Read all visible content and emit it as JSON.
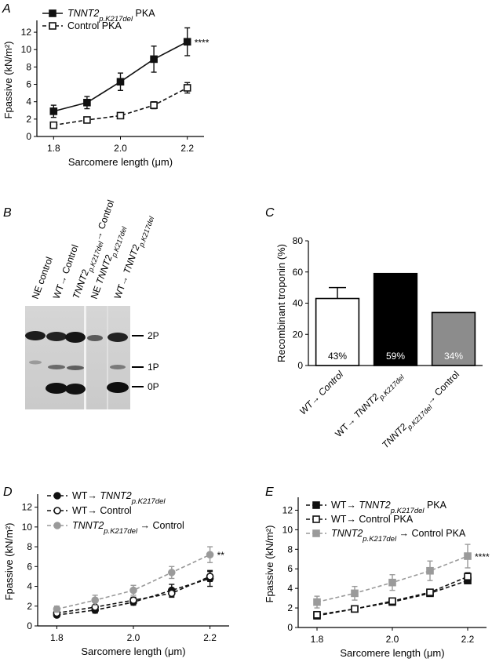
{
  "panels": {
    "a": {
      "letter": "A",
      "chart_data": {
        "type": "line",
        "x": [
          1.8,
          1.9,
          2.0,
          2.1,
          2.2
        ],
        "xlabel": "Sarcomere length (μm)",
        "ylabel": "Fpassive (kN/m²)",
        "xlim": [
          1.75,
          2.25
        ],
        "ylim": [
          0,
          13
        ],
        "xticks": [
          1.8,
          2.0,
          2.2
        ],
        "yticks": [
          0,
          2,
          4,
          6,
          8,
          10,
          12
        ],
        "legend_position": "top-left",
        "series": [
          {
            "name": "TNNT2p.K217del PKA",
            "name_main": "TNNT2",
            "name_sub": "p.K217del",
            "name_suffix": " PKA",
            "values": [
              2.9,
              3.9,
              6.3,
              8.9,
              10.9
            ],
            "errors": [
              0.7,
              0.7,
              1.0,
              1.5,
              1.6
            ],
            "marker": "square",
            "filled": true,
            "color": "#111111",
            "line": "solid",
            "annotation": "****"
          },
          {
            "name": "Control PKA",
            "values": [
              1.3,
              1.9,
              2.4,
              3.6,
              5.6
            ],
            "errors": [
              0.2,
              0.2,
              0.2,
              0.4,
              0.6
            ],
            "marker": "square",
            "filled": false,
            "color": "#111111",
            "line": "dashed"
          }
        ]
      }
    },
    "b": {
      "letter": "B",
      "lanes": [
        {
          "label": "NE control"
        },
        {
          "label": "WT→ Control"
        },
        {
          "main": "TNNT2",
          "sub": "p.K217del",
          "suffix": "→ Control"
        },
        {
          "prefix": "NE ",
          "main": "TNNT2",
          "sub": "p.K217del"
        },
        {
          "prefix": "WT→ ",
          "main": "TNNT2",
          "sub": "p.K217del"
        }
      ],
      "bands": [
        "2P",
        "1P",
        "0P"
      ]
    },
    "c": {
      "letter": "C",
      "chart_data": {
        "type": "bar",
        "ylabel": "Recombinant troponin (%)",
        "ylim": [
          0,
          80
        ],
        "yticks": [
          0,
          20,
          40,
          60,
          80
        ],
        "categories": [
          {
            "main": "WT→ Control"
          },
          {
            "prefix": "WT→ ",
            "main": "TNNT2",
            "sub": "p.K217del"
          },
          {
            "main": "TNNT2",
            "sub": "p.K217del",
            "suffix": "→ Control"
          }
        ],
        "values": [
          43,
          59,
          34
        ],
        "errors": [
          7,
          0,
          0
        ],
        "labels": [
          "43%",
          "59%",
          "34%"
        ],
        "colors": [
          "#ffffff",
          "#000000",
          "#8c8c8c"
        ],
        "label_colors": [
          "#000000",
          "#ffffff",
          "#ffffff"
        ]
      }
    },
    "d": {
      "letter": "D",
      "chart_data": {
        "type": "line",
        "x": [
          1.8,
          1.9,
          2.0,
          2.1,
          2.2
        ],
        "xlabel": "Sarcomere length (μm)",
        "ylabel": "Fpassive (kN/m²)",
        "xlim": [
          1.75,
          2.25
        ],
        "ylim": [
          0,
          13
        ],
        "xticks": [
          1.8,
          2.0,
          2.2
        ],
        "yticks": [
          0,
          2,
          4,
          6,
          8,
          10,
          12
        ],
        "legend_position": "top-left",
        "series": [
          {
            "name": "WT→ TNNT2p.K217del",
            "name_prefix": "WT→ ",
            "name_main": "TNNT2",
            "name_sub": "p.K217del",
            "values": [
              1.1,
              1.6,
              2.4,
              3.6,
              4.8
            ],
            "errors": [
              0.2,
              0.3,
              0.3,
              0.6,
              0.8
            ],
            "marker": "circle",
            "filled": true,
            "color": "#111111",
            "line": "dashed"
          },
          {
            "name": "WT→ Control",
            "values": [
              1.3,
              1.9,
              2.6,
              3.3,
              5.0
            ],
            "errors": [
              0.2,
              0.2,
              0.3,
              0.4,
              0.5
            ],
            "marker": "circle",
            "filled": false,
            "color": "#111111",
            "line": "dashed"
          },
          {
            "name": "TNNT2p.K217del → Control",
            "name_main": "TNNT2",
            "name_sub": "p.K217del",
            "name_suffix": " → Control",
            "values": [
              1.7,
              2.6,
              3.6,
              5.4,
              7.2
            ],
            "errors": [
              0.3,
              0.5,
              0.5,
              0.6,
              0.8
            ],
            "marker": "circle",
            "filled": true,
            "color": "#9a9a9a",
            "line": "dashed",
            "annotation": "**"
          }
        ]
      }
    },
    "e": {
      "letter": "E",
      "chart_data": {
        "type": "line",
        "x": [
          1.8,
          1.9,
          2.0,
          2.1,
          2.2
        ],
        "xlabel": "Sarcomere length (μm)",
        "ylabel": "Fpassive (kN/m²)",
        "xlim": [
          1.75,
          2.25
        ],
        "ylim": [
          0,
          13
        ],
        "xticks": [
          1.8,
          2.0,
          2.2
        ],
        "yticks": [
          0,
          2,
          4,
          6,
          8,
          10,
          12
        ],
        "legend_position": "top-left",
        "series": [
          {
            "name": "WT→ TNNT2p.K217del PKA",
            "name_prefix": "WT→ ",
            "name_main": "TNNT2",
            "name_sub": "p.K217del",
            "name_suffix": " PKA",
            "values": [
              1.2,
              1.9,
              2.6,
              3.5,
              4.8
            ],
            "errors": [
              0.2,
              0.2,
              0.3,
              0.3,
              0.3
            ],
            "marker": "square",
            "filled": true,
            "color": "#111111",
            "line": "dashed"
          },
          {
            "name": "WT→ Control PKA",
            "values": [
              1.3,
              1.9,
              2.7,
              3.6,
              5.2
            ],
            "errors": [
              0.2,
              0.2,
              0.2,
              0.3,
              0.4
            ],
            "marker": "square",
            "filled": false,
            "color": "#111111",
            "line": "dashed"
          },
          {
            "name": "TNNT2p.K217del → Control PKA",
            "name_main": "TNNT2",
            "name_sub": "p.K217del",
            "name_suffix": " → Control PKA",
            "values": [
              2.6,
              3.5,
              4.6,
              5.8,
              7.3
            ],
            "errors": [
              0.6,
              0.7,
              0.8,
              1.0,
              1.2
            ],
            "marker": "square",
            "filled": true,
            "color": "#9a9a9a",
            "line": "dashed",
            "annotation": "****"
          }
        ]
      }
    }
  }
}
